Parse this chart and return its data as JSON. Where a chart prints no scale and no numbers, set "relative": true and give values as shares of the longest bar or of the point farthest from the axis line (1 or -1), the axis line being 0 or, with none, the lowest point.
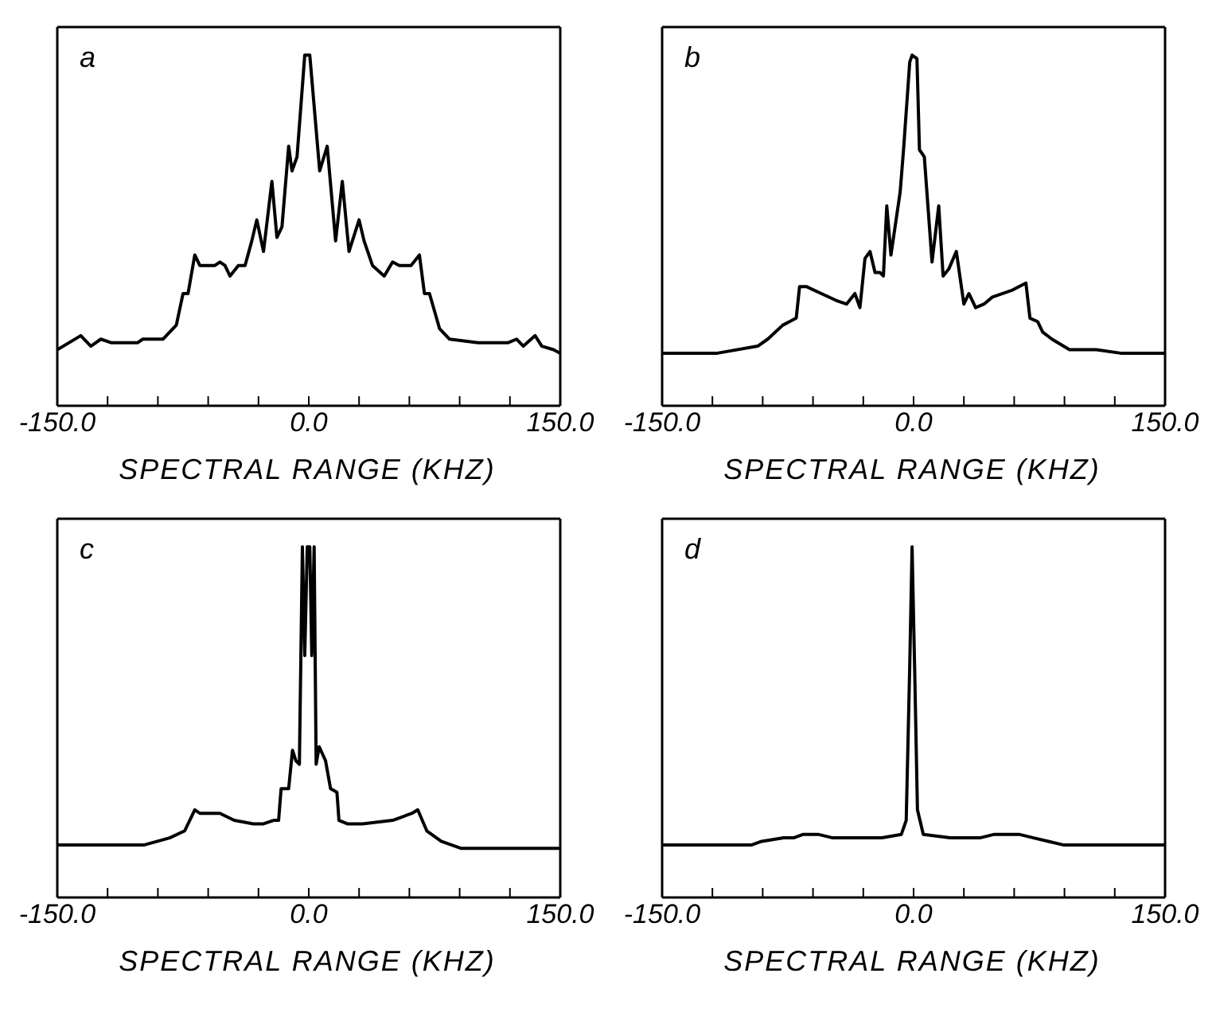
{
  "chart_data": [
    {
      "type": "line",
      "annotations": [
        "a"
      ],
      "xlabel": "SPECTRAL RANGE (KHZ)",
      "relative": true,
      "tick_labels": "x",
      "xlim": [
        -150,
        150
      ],
      "xticks": [
        {
          "value": -150,
          "label": "-150.0"
        },
        {
          "value": -120,
          "label": null
        },
        {
          "value": -90,
          "label": null
        },
        {
          "value": -60,
          "label": null
        },
        {
          "value": -30,
          "label": null
        },
        {
          "value": 0,
          "label": "0.0"
        },
        {
          "value": 30,
          "label": null
        },
        {
          "value": 60,
          "label": null
        },
        {
          "value": 90,
          "label": null
        },
        {
          "value": 120,
          "label": null
        },
        {
          "value": 150,
          "label": "150.0"
        }
      ],
      "series": [
        {
          "color": "#000000",
          "x": [
            -150,
            -136,
            -130,
            -124,
            -118,
            -102,
            -99,
            -87,
            -79,
            -75,
            -72,
            -68,
            -65,
            -56,
            -53,
            -50,
            -47,
            -42,
            -38,
            -34,
            -31,
            -27,
            -22,
            -19,
            -16,
            -12,
            -10,
            -7,
            -2.4,
            0.6,
            6.5,
            11,
            16,
            20,
            24,
            30,
            33,
            38,
            45,
            50,
            54,
            61,
            66,
            69,
            72,
            78,
            84,
            101,
            119,
            124,
            128,
            135,
            139,
            146,
            150
          ],
          "values": [
            0.16,
            0.2,
            0.17,
            0.19,
            0.18,
            0.18,
            0.19,
            0.19,
            0.23,
            0.32,
            0.32,
            0.43,
            0.4,
            0.4,
            0.41,
            0.4,
            0.37,
            0.4,
            0.4,
            0.47,
            0.53,
            0.44,
            0.64,
            0.48,
            0.51,
            0.74,
            0.67,
            0.71,
            1.0,
            1.0,
            0.67,
            0.74,
            0.47,
            0.64,
            0.44,
            0.53,
            0.47,
            0.4,
            0.37,
            0.41,
            0.4,
            0.4,
            0.43,
            0.32,
            0.32,
            0.22,
            0.19,
            0.18,
            0.18,
            0.19,
            0.17,
            0.2,
            0.17,
            0.16,
            0.15
          ]
        }
      ]
    },
    {
      "type": "line",
      "annotations": [
        "b"
      ],
      "xlabel": "SPECTRAL RANGE (KHZ)",
      "relative": true,
      "tick_labels": "x",
      "xlim": [
        -150,
        150
      ],
      "xticks": [
        {
          "value": -150,
          "label": "-150.0"
        },
        {
          "value": -120,
          "label": null
        },
        {
          "value": -90,
          "label": null
        },
        {
          "value": -60,
          "label": null
        },
        {
          "value": -30,
          "label": null
        },
        {
          "value": 0,
          "label": "0.0"
        },
        {
          "value": 30,
          "label": null
        },
        {
          "value": 60,
          "label": null
        },
        {
          "value": 90,
          "label": null
        },
        {
          "value": 120,
          "label": null
        },
        {
          "value": 150,
          "label": "150.0"
        }
      ],
      "series": [
        {
          "color": "#000000",
          "x": [
            -150,
            -117,
            -93,
            -87,
            -78,
            -74,
            -70,
            -68,
            -64,
            -55,
            -46,
            -40,
            -35,
            -32,
            -29,
            -26,
            -23,
            -20,
            -18,
            -16,
            -13.5,
            -8,
            -6,
            -2.3,
            -0.9,
            2,
            3.5,
            6.4,
            11,
            15,
            17.6,
            21,
            25.5,
            30,
            33,
            37,
            42,
            47,
            59,
            67,
            69.4,
            74,
            77,
            82.5,
            93,
            109,
            123.5,
            150
          ],
          "values": [
            0.15,
            0.15,
            0.17,
            0.19,
            0.23,
            0.24,
            0.25,
            0.34,
            0.34,
            0.32,
            0.3,
            0.29,
            0.32,
            0.28,
            0.42,
            0.44,
            0.38,
            0.38,
            0.37,
            0.57,
            0.43,
            0.61,
            0.73,
            0.98,
            1.0,
            0.99,
            0.73,
            0.71,
            0.41,
            0.57,
            0.37,
            0.39,
            0.44,
            0.29,
            0.32,
            0.28,
            0.29,
            0.31,
            0.33,
            0.35,
            0.25,
            0.24,
            0.21,
            0.19,
            0.16,
            0.16,
            0.15,
            0.15
          ]
        }
      ]
    },
    {
      "type": "line",
      "annotations": [
        "c"
      ],
      "xlabel": "SPECTRAL RANGE (KHZ)",
      "relative": true,
      "tick_labels": "x",
      "xlim": [
        -150,
        150
      ],
      "xticks": [
        {
          "value": -150,
          "label": "-150.0"
        },
        {
          "value": -120,
          "label": null
        },
        {
          "value": -90,
          "label": null
        },
        {
          "value": -60,
          "label": null
        },
        {
          "value": -30,
          "label": null
        },
        {
          "value": 0,
          "label": "0.0"
        },
        {
          "value": 30,
          "label": null
        },
        {
          "value": 60,
          "label": null
        },
        {
          "value": 90,
          "label": null
        },
        {
          "value": 120,
          "label": null
        },
        {
          "value": 150,
          "label": "150.0"
        }
      ],
      "series": [
        {
          "color": "#000000",
          "x": [
            -150,
            -98,
            -83,
            -74,
            -68,
            -65,
            -53,
            -44.5,
            -33,
            -27,
            -21,
            -18,
            -16.5,
            -12,
            -9.7,
            -7.7,
            -5.6,
            -3.8,
            -2.4,
            -0.9,
            0.6,
            1.8,
            3.2,
            4.4,
            6.2,
            10,
            13,
            16.8,
            18,
            23,
            32,
            50,
            61.6,
            65,
            70.4,
            79,
            91,
            109,
            150
          ],
          "values": [
            0.15,
            0.15,
            0.17,
            0.19,
            0.25,
            0.24,
            0.24,
            0.22,
            0.21,
            0.21,
            0.22,
            0.22,
            0.31,
            0.31,
            0.42,
            0.39,
            0.38,
            1.0,
            0.69,
            1.0,
            1.0,
            0.69,
            1.0,
            0.38,
            0.43,
            0.39,
            0.31,
            0.3,
            0.22,
            0.21,
            0.21,
            0.22,
            0.24,
            0.25,
            0.19,
            0.16,
            0.14,
            0.14,
            0.14
          ]
        }
      ]
    },
    {
      "type": "line",
      "annotations": [
        "d"
      ],
      "xlabel": "SPECTRAL RANGE (KHZ)",
      "relative": true,
      "tick_labels": "x",
      "xlim": [
        -150,
        150
      ],
      "xticks": [
        {
          "value": -150,
          "label": "-150.0"
        },
        {
          "value": -120,
          "label": null
        },
        {
          "value": -90,
          "label": null
        },
        {
          "value": -60,
          "label": null
        },
        {
          "value": -30,
          "label": null
        },
        {
          "value": 0,
          "label": "0.0"
        },
        {
          "value": 30,
          "label": null
        },
        {
          "value": 60,
          "label": null
        },
        {
          "value": 90,
          "label": null
        },
        {
          "value": 120,
          "label": null
        },
        {
          "value": 150,
          "label": "150.0"
        }
      ],
      "series": [
        {
          "color": "#000000",
          "x": [
            -150,
            -96.5,
            -90.6,
            -77.5,
            -71.6,
            -65.8,
            -57,
            -48.2,
            -36.5,
            -19,
            -7.3,
            -4.4,
            -2.3,
            -0.9,
            0.6,
            2.3,
            5.8,
            21.9,
            39.5,
            48.2,
            62.9,
            71.6,
            80.4,
            89.2,
            150
          ],
          "values": [
            0.15,
            0.15,
            0.16,
            0.17,
            0.17,
            0.18,
            0.18,
            0.17,
            0.17,
            0.17,
            0.18,
            0.22,
            0.66,
            1.0,
            0.66,
            0.25,
            0.18,
            0.17,
            0.17,
            0.18,
            0.18,
            0.17,
            0.16,
            0.15,
            0.15
          ]
        }
      ]
    }
  ]
}
